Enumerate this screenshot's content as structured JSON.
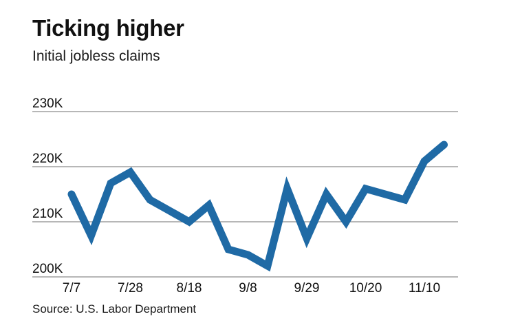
{
  "header": {
    "title": "Ticking higher",
    "subtitle": "Initial jobless claims"
  },
  "footer": {
    "source": "Source: U.S. Labor Department"
  },
  "colors": {
    "line": "#1f6aa5",
    "grid": "#8c8c8c"
  },
  "chart_data": {
    "type": "line",
    "title": "Ticking higher",
    "subtitle": "Initial jobless claims",
    "xlabel": "",
    "ylabel": "",
    "ylim": [
      200000,
      230000
    ],
    "yticks": [
      "200K",
      "210K",
      "220K",
      "230K"
    ],
    "xticks": [
      "7/7",
      "7/28",
      "8/18",
      "9/8",
      "9/29",
      "10/20",
      "11/10"
    ],
    "grid": true,
    "legend": "none",
    "x": [
      "7/7",
      "7/14",
      "7/21",
      "7/28",
      "8/4",
      "8/11",
      "8/18",
      "8/25",
      "9/1",
      "9/8",
      "9/15",
      "9/22",
      "9/29",
      "10/6",
      "10/13",
      "10/20",
      "10/27",
      "11/3",
      "11/10",
      "11/17"
    ],
    "series": [
      {
        "name": "Initial jobless claims",
        "values": [
          215000,
          207500,
          217000,
          219000,
          214000,
          212000,
          210000,
          213000,
          205000,
          204000,
          202000,
          216000,
          207000,
          215000,
          210000,
          216000,
          215000,
          214000,
          221000,
          224000
        ]
      }
    ],
    "source": "Source: U.S. Labor Department"
  }
}
